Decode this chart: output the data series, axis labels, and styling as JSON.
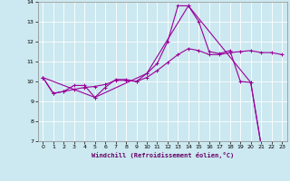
{
  "xlabel": "Windchill (Refroidissement éolien,°C)",
  "line_color": "#990099",
  "bg_color": "#cce8f0",
  "grid_color": "#ffffff",
  "xlim": [
    -0.5,
    23.5
  ],
  "ylim": [
    7,
    14
  ],
  "xticks": [
    0,
    1,
    2,
    3,
    4,
    5,
    6,
    7,
    8,
    9,
    10,
    11,
    12,
    13,
    14,
    15,
    16,
    17,
    18,
    19,
    20,
    21,
    22,
    23
  ],
  "yticks": [
    7,
    8,
    9,
    10,
    11,
    12,
    13,
    14
  ],
  "line1_x": [
    0,
    1,
    2,
    3,
    4,
    5,
    6,
    7,
    8,
    9,
    10,
    11,
    12,
    13,
    14,
    15,
    16,
    17,
    18,
    19,
    20,
    21,
    22,
    23
  ],
  "line1_y": [
    10.2,
    9.4,
    9.5,
    9.8,
    9.8,
    9.2,
    9.7,
    10.1,
    10.1,
    10.0,
    10.4,
    10.9,
    12.0,
    13.8,
    13.8,
    13.0,
    11.5,
    11.4,
    11.55,
    10.0,
    9.95,
    6.8,
    6.8,
    6.5
  ],
  "line2_x": [
    0,
    1,
    2,
    3,
    4,
    5,
    6,
    7,
    8,
    9,
    10,
    11,
    12,
    13,
    14,
    15,
    16,
    17,
    18,
    19,
    20,
    21,
    22,
    23
  ],
  "line2_y": [
    10.2,
    9.4,
    9.5,
    9.6,
    9.7,
    9.75,
    9.85,
    10.05,
    10.05,
    10.0,
    10.2,
    10.55,
    10.95,
    11.35,
    11.65,
    11.55,
    11.35,
    11.35,
    11.45,
    11.5,
    11.55,
    11.45,
    11.45,
    11.35
  ],
  "line3_x": [
    0,
    5,
    10,
    14,
    20,
    21,
    22,
    23
  ],
  "line3_y": [
    10.2,
    9.2,
    10.4,
    13.8,
    9.95,
    6.8,
    6.8,
    6.5
  ]
}
